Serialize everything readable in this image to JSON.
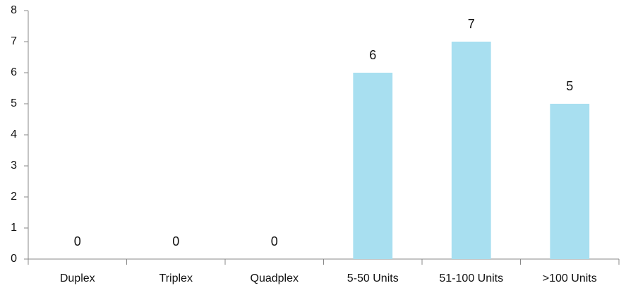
{
  "chart_data": {
    "type": "bar",
    "categories": [
      "Duplex",
      "Triplex",
      "Quadplex",
      "5-50 Units",
      "51-100 Units",
      ">100 Units"
    ],
    "values": [
      0,
      0,
      0,
      6,
      7,
      5
    ],
    "color": "#a8dff0",
    "ylim": [
      0,
      8
    ],
    "yticks": [
      0,
      1,
      2,
      3,
      4,
      5,
      6,
      7,
      8
    ],
    "grid": false
  }
}
